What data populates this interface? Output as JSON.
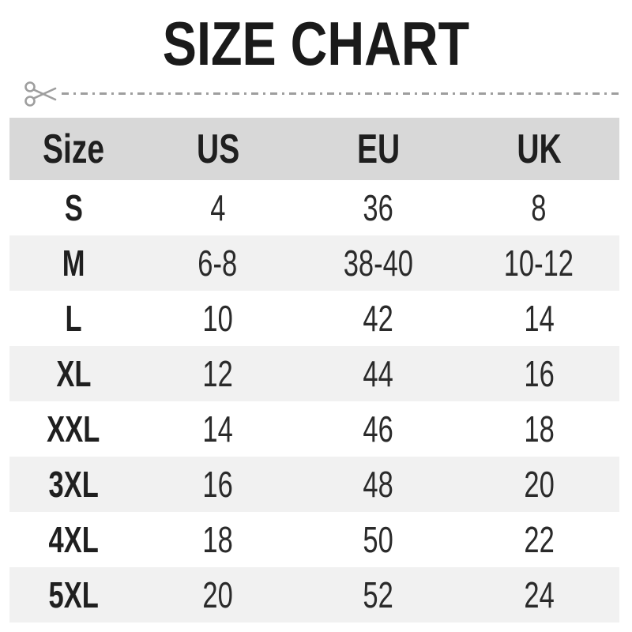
{
  "page_title": "SIZE CHART",
  "divider": {
    "icon": "scissors"
  },
  "chart_data": {
    "type": "table",
    "title": "SIZE CHART",
    "columns": [
      "Size",
      "US",
      "EU",
      "UK"
    ],
    "rows": [
      [
        "S",
        "4",
        "36",
        "8"
      ],
      [
        "M",
        "6-8",
        "38-40",
        "10-12"
      ],
      [
        "L",
        "10",
        "42",
        "14"
      ],
      [
        "XL",
        "12",
        "44",
        "16"
      ],
      [
        "XXL",
        "14",
        "46",
        "18"
      ],
      [
        "3XL",
        "16",
        "48",
        "20"
      ],
      [
        "4XL",
        "18",
        "50",
        "22"
      ],
      [
        "5XL",
        "20",
        "52",
        "24"
      ]
    ],
    "layout_hints": {
      "header_row_shaded": true,
      "alternating_row_shading": "even rows (M, XL, 3XL, 5XL)",
      "grid": false
    }
  },
  "colors": {
    "header_bg": "#d8d8d8",
    "row_alt_bg": "#f1f1f1",
    "divider_gray": "#9e9e9e",
    "text": "#1f1f1f"
  }
}
